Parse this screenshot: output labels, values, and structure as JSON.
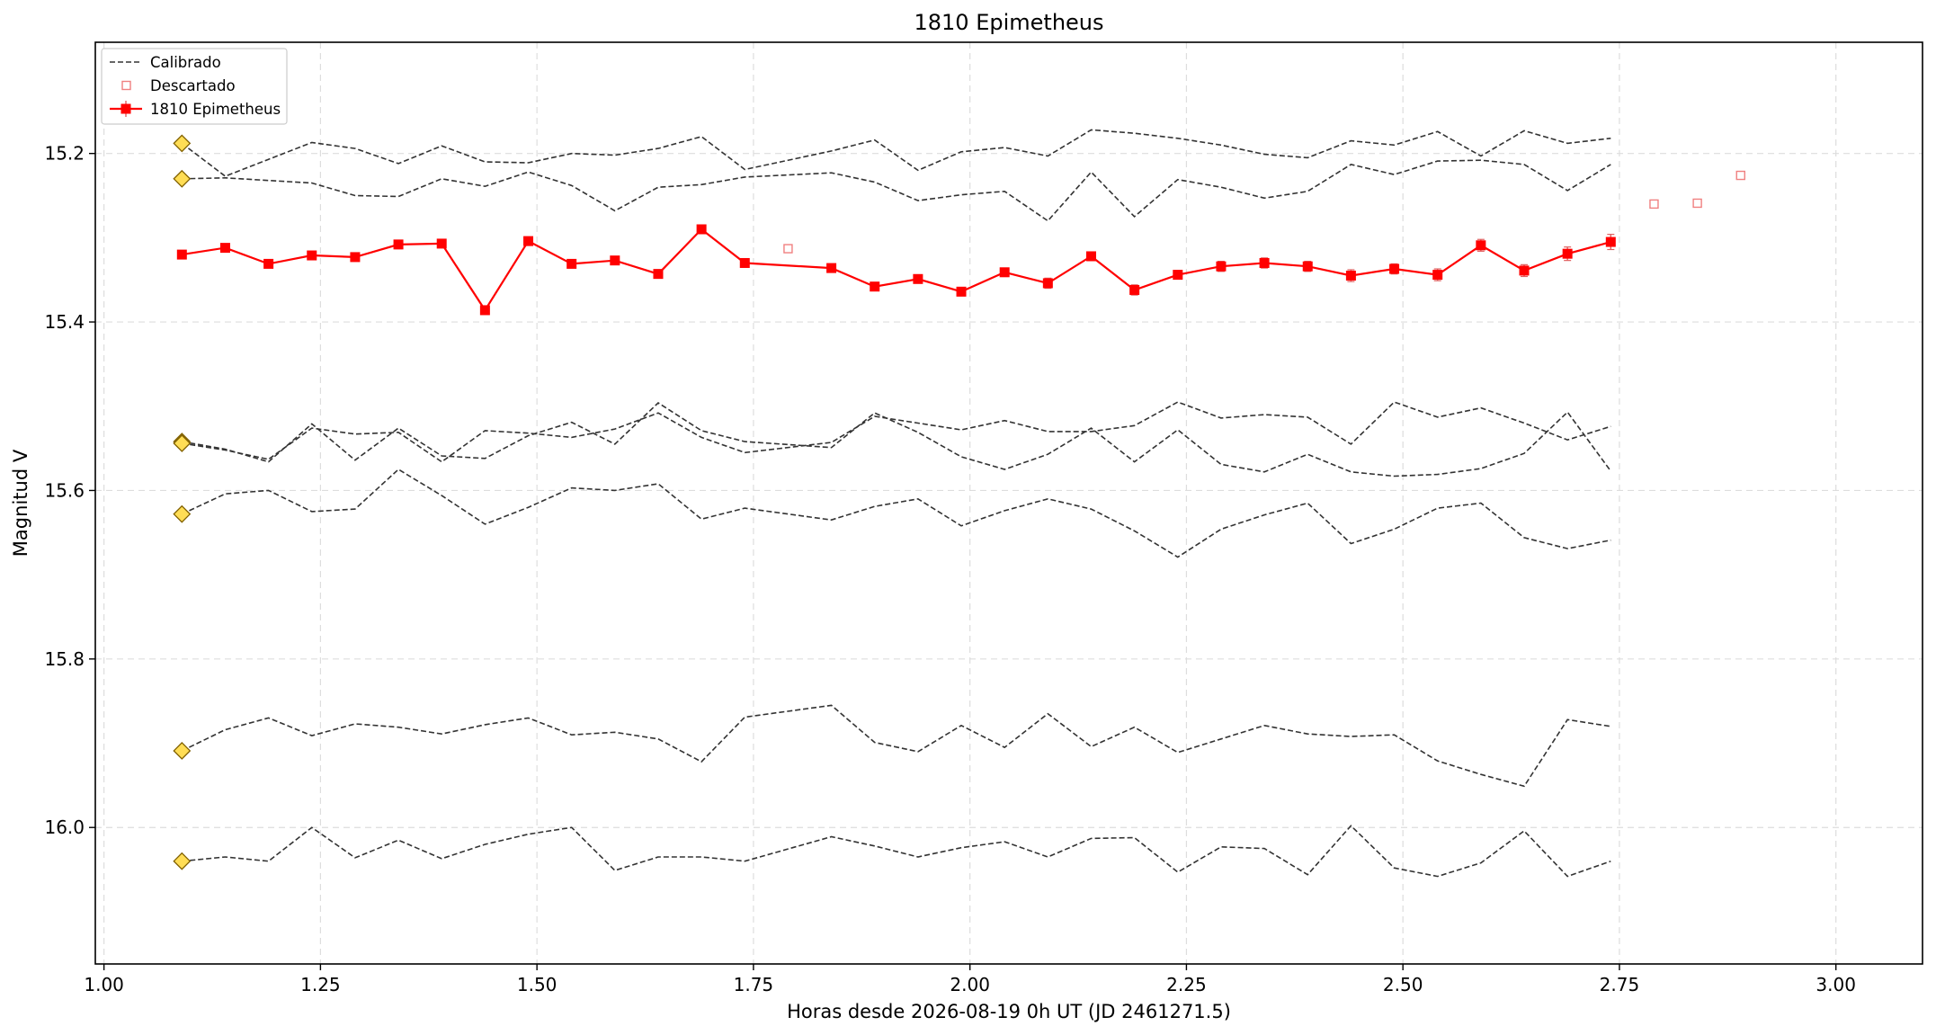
{
  "chart_data": {
    "type": "line",
    "title": "1810 Epimetheus",
    "xlabel": "Horas desde 2026-08-19 0h UT (JD 2461271.5)",
    "ylabel": "Magnitud V",
    "xlim": [
      0.99,
      3.1
    ],
    "ylim": [
      16.162,
      15.068
    ],
    "y_inverted": true,
    "grid": true,
    "legend_position": "upper-left",
    "xticks": [
      1.0,
      1.25,
      1.5,
      1.75,
      2.0,
      2.25,
      2.5,
      2.75,
      3.0
    ],
    "xtick_labels": [
      "1.00",
      "1.25",
      "1.50",
      "1.75",
      "2.00",
      "2.25",
      "2.50",
      "2.75",
      "3.00"
    ],
    "yticks": [
      15.2,
      15.4,
      15.6,
      15.8,
      16.0
    ],
    "ytick_labels": [
      "15.2",
      "15.4",
      "15.6",
      "15.8",
      "16.0"
    ],
    "legend": [
      {
        "label": "Calibrado",
        "style": "dashed-line"
      },
      {
        "label": "Descartado",
        "style": "open-square"
      },
      {
        "label": "1810 Epimetheus",
        "style": "line-square-errorbar"
      }
    ],
    "colors": {
      "target": "#ff0000",
      "calibration": "#333333",
      "discarded": "#f08080",
      "marker_fill": "#ffdd55",
      "marker_edge": "#806000",
      "grid": "#dddddd"
    },
    "calibration_x": [
      1.09,
      1.14,
      1.19,
      1.24,
      1.29,
      1.34,
      1.39,
      1.44,
      1.49,
      1.54,
      1.59,
      1.64,
      1.69,
      1.74,
      1.84,
      1.89,
      1.94,
      1.99,
      2.04,
      2.09,
      2.14,
      2.19,
      2.24,
      2.29,
      2.34,
      2.39,
      2.44,
      2.49,
      2.54,
      2.59,
      2.64,
      2.69,
      2.74
    ],
    "calibration_series": [
      {
        "values": [
          15.188,
          15.227,
          15.207,
          15.187,
          15.194,
          15.212,
          15.191,
          15.21,
          15.211,
          15.2,
          15.202,
          15.194,
          15.18,
          15.219,
          15.197,
          15.184,
          15.22,
          15.198,
          15.193,
          15.203,
          15.172,
          15.176,
          15.182,
          15.19,
          15.201,
          15.205,
          15.185,
          15.19,
          15.174,
          15.203,
          15.173,
          15.188,
          15.182
        ]
      },
      {
        "values": [
          15.23,
          15.229,
          15.232,
          15.235,
          15.25,
          15.251,
          15.23,
          15.239,
          15.222,
          15.238,
          15.268,
          15.24,
          15.237,
          15.228,
          15.223,
          15.234,
          15.256,
          15.249,
          15.245,
          15.28,
          15.222,
          15.275,
          15.231,
          15.24,
          15.253,
          15.245,
          15.213,
          15.225,
          15.209,
          15.208,
          15.213,
          15.244,
          15.213
        ]
      },
      {
        "values": [
          15.542,
          15.551,
          15.566,
          15.521,
          15.564,
          15.526,
          15.559,
          15.562,
          15.535,
          15.519,
          15.545,
          15.496,
          15.529,
          15.542,
          15.549,
          15.508,
          15.531,
          15.56,
          15.575,
          15.557,
          15.526,
          15.566,
          15.528,
          15.569,
          15.578,
          15.557,
          15.578,
          15.583,
          15.581,
          15.574,
          15.556,
          15.507,
          15.577
        ]
      },
      {
        "values": [
          15.544,
          15.552,
          15.563,
          15.526,
          15.533,
          15.531,
          15.566,
          15.529,
          15.532,
          15.537,
          15.527,
          15.508,
          15.537,
          15.555,
          15.543,
          15.512,
          15.52,
          15.528,
          15.517,
          15.53,
          15.53,
          15.523,
          15.495,
          15.514,
          15.51,
          15.513,
          15.545,
          15.495,
          15.513,
          15.502,
          15.52,
          15.54,
          15.524
        ]
      },
      {
        "values": [
          15.628,
          15.604,
          15.6,
          15.625,
          15.622,
          15.575,
          15.606,
          15.64,
          15.62,
          15.597,
          15.6,
          15.592,
          15.634,
          15.621,
          15.635,
          15.619,
          15.61,
          15.642,
          15.624,
          15.61,
          15.622,
          15.648,
          15.679,
          15.646,
          15.629,
          15.615,
          15.663,
          15.646,
          15.621,
          15.615,
          15.656,
          15.669,
          15.659
        ]
      },
      {
        "values": [
          15.909,
          15.884,
          15.87,
          15.891,
          15.877,
          15.881,
          15.889,
          15.878,
          15.87,
          15.89,
          15.887,
          15.895,
          15.922,
          15.869,
          15.855,
          15.899,
          15.91,
          15.879,
          15.905,
          15.865,
          15.904,
          15.881,
          15.911,
          15.895,
          15.879,
          15.889,
          15.892,
          15.89,
          15.921,
          15.937,
          15.951,
          15.872,
          15.88
        ]
      },
      {
        "values": [
          16.04,
          16.035,
          16.04,
          16.0,
          16.036,
          16.015,
          16.037,
          16.02,
          16.008,
          16.0,
          16.051,
          16.035,
          16.035,
          16.04,
          16.011,
          16.022,
          16.035,
          16.024,
          16.017,
          16.035,
          16.013,
          16.012,
          16.053,
          16.023,
          16.025,
          16.056,
          15.998,
          16.048,
          16.058,
          16.042,
          16.004,
          16.058,
          16.04
        ]
      }
    ],
    "reference_markers_x": 1.09,
    "reference_markers_y": [
      15.188,
      15.23,
      15.542,
      15.544,
      15.628,
      15.909,
      16.04
    ],
    "target_series": {
      "name": "1810 Epimetheus",
      "x": [
        1.09,
        1.14,
        1.19,
        1.24,
        1.29,
        1.34,
        1.39,
        1.44,
        1.49,
        1.54,
        1.59,
        1.64,
        1.69,
        1.74,
        1.84,
        1.89,
        1.94,
        1.99,
        2.04,
        2.09,
        2.14,
        2.19,
        2.24,
        2.29,
        2.34,
        2.39,
        2.44,
        2.49,
        2.54,
        2.59,
        2.64,
        2.69,
        2.74
      ],
      "y": [
        15.32,
        15.312,
        15.331,
        15.321,
        15.323,
        15.308,
        15.307,
        15.386,
        15.304,
        15.331,
        15.327,
        15.343,
        15.29,
        15.33,
        15.336,
        15.358,
        15.349,
        15.364,
        15.341,
        15.354,
        15.322,
        15.362,
        15.344,
        15.334,
        15.33,
        15.334,
        15.345,
        15.337,
        15.344,
        15.309,
        15.339,
        15.319,
        15.305
      ],
      "yerr": [
        0.004,
        0.004,
        0.004,
        0.004,
        0.004,
        0.005,
        0.004,
        0.005,
        0.005,
        0.004,
        0.004,
        0.005,
        0.005,
        0.004,
        0.005,
        0.005,
        0.005,
        0.005,
        0.005,
        0.006,
        0.005,
        0.006,
        0.005,
        0.006,
        0.006,
        0.006,
        0.007,
        0.006,
        0.007,
        0.007,
        0.007,
        0.008,
        0.009
      ]
    },
    "discarded_points": {
      "x": [
        1.79,
        2.79,
        2.84,
        2.89
      ],
      "y": [
        15.313,
        15.26,
        15.259,
        15.226
      ]
    }
  }
}
